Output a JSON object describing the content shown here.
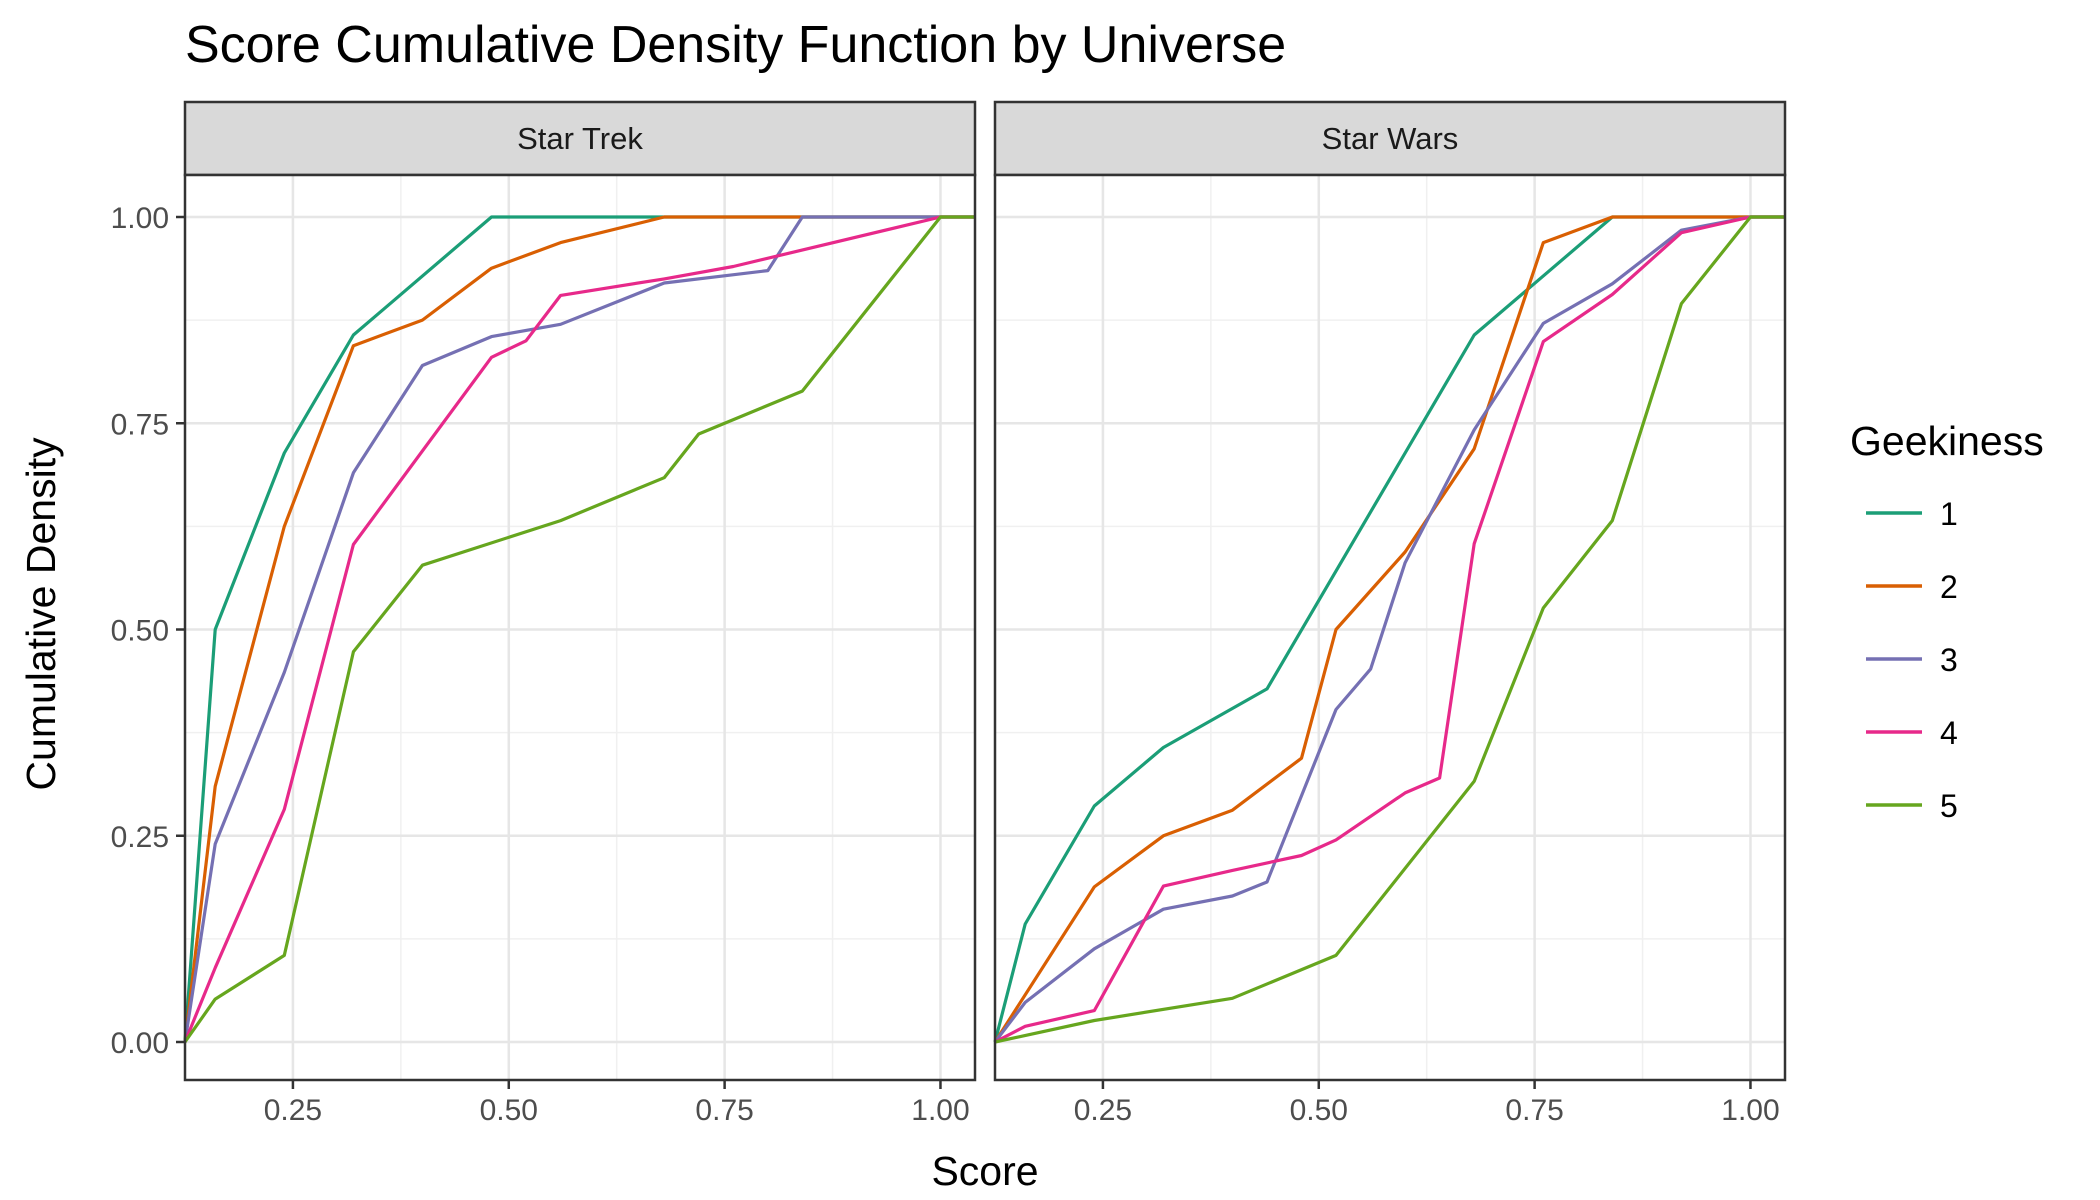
{
  "chart_data": {
    "type": "line",
    "title": "Score Cumulative Density Function by Universe",
    "xlabel": "Score",
    "ylabel": "Cumulative Density",
    "xlim": [
      0.125,
      1.04
    ],
    "ylim": [
      0,
      1.0
    ],
    "x_ticks": [
      "0.25",
      "0.50",
      "0.75",
      "1.00"
    ],
    "y_ticks": [
      "0.00",
      "0.25",
      "0.50",
      "0.75",
      "1.00"
    ],
    "grid": true,
    "legend": {
      "title": "Geekiness",
      "position": "right",
      "entries": [
        "1",
        "2",
        "3",
        "4",
        "5"
      ]
    },
    "colors": [
      "#1B9E77",
      "#D95F02",
      "#7570B3",
      "#E7298A",
      "#66A61E"
    ],
    "panels": [
      {
        "name": "Star Trek",
        "series": [
          {
            "name": "1",
            "points": [
              [
                0.125,
                0
              ],
              [
                0.16,
                0.5
              ],
              [
                0.24,
                0.714
              ],
              [
                0.32,
                0.857
              ],
              [
                0.48,
                1.0
              ],
              [
                1.04,
                1.0
              ]
            ]
          },
          {
            "name": "2",
            "points": [
              [
                0.125,
                0
              ],
              [
                0.16,
                0.31
              ],
              [
                0.24,
                0.625
              ],
              [
                0.32,
                0.844
              ],
              [
                0.4,
                0.875
              ],
              [
                0.48,
                0.938
              ],
              [
                0.56,
                0.969
              ],
              [
                0.68,
                1.0
              ],
              [
                1.04,
                1.0
              ]
            ]
          },
          {
            "name": "3",
            "points": [
              [
                0.125,
                0
              ],
              [
                0.16,
                0.24
              ],
              [
                0.24,
                0.448
              ],
              [
                0.32,
                0.69
              ],
              [
                0.4,
                0.82
              ],
              [
                0.48,
                0.855
              ],
              [
                0.56,
                0.87
              ],
              [
                0.68,
                0.92
              ],
              [
                0.8,
                0.935
              ],
              [
                0.84,
                1.0
              ],
              [
                1.04,
                1.0
              ]
            ]
          },
          {
            "name": "4",
            "points": [
              [
                0.125,
                0
              ],
              [
                0.16,
                0.09
              ],
              [
                0.24,
                0.282
              ],
              [
                0.32,
                0.603
              ],
              [
                0.48,
                0.83
              ],
              [
                0.52,
                0.85
              ],
              [
                0.56,
                0.905
              ],
              [
                0.68,
                0.925
              ],
              [
                0.76,
                0.94
              ],
              [
                1.0,
                1.0
              ],
              [
                1.04,
                1.0
              ]
            ]
          },
          {
            "name": "5",
            "points": [
              [
                0.125,
                0
              ],
              [
                0.16,
                0.052
              ],
              [
                0.24,
                0.105
              ],
              [
                0.32,
                0.473
              ],
              [
                0.4,
                0.578
              ],
              [
                0.56,
                0.632
              ],
              [
                0.68,
                0.684
              ],
              [
                0.72,
                0.737
              ],
              [
                0.84,
                0.789
              ],
              [
                1.0,
                1.0
              ],
              [
                1.04,
                1.0
              ]
            ]
          }
        ]
      },
      {
        "name": "Star Wars",
        "series": [
          {
            "name": "1",
            "points": [
              [
                0.125,
                0
              ],
              [
                0.16,
                0.143
              ],
              [
                0.24,
                0.286
              ],
              [
                0.32,
                0.357
              ],
              [
                0.44,
                0.428
              ],
              [
                0.68,
                0.857
              ],
              [
                0.84,
                1.0
              ],
              [
                1.04,
                1.0
              ]
            ]
          },
          {
            "name": "2",
            "points": [
              [
                0.125,
                0
              ],
              [
                0.24,
                0.188
              ],
              [
                0.32,
                0.25
              ],
              [
                0.4,
                0.281
              ],
              [
                0.48,
                0.344
              ],
              [
                0.52,
                0.5
              ],
              [
                0.6,
                0.594
              ],
              [
                0.68,
                0.719
              ],
              [
                0.76,
                0.969
              ],
              [
                0.84,
                1.0
              ],
              [
                1.04,
                1.0
              ]
            ]
          },
          {
            "name": "3",
            "points": [
              [
                0.125,
                0
              ],
              [
                0.16,
                0.048
              ],
              [
                0.24,
                0.113
              ],
              [
                0.32,
                0.161
              ],
              [
                0.4,
                0.177
              ],
              [
                0.44,
                0.194
              ],
              [
                0.52,
                0.403
              ],
              [
                0.56,
                0.452
              ],
              [
                0.6,
                0.581
              ],
              [
                0.68,
                0.742
              ],
              [
                0.76,
                0.871
              ],
              [
                0.84,
                0.919
              ],
              [
                0.92,
                0.984
              ],
              [
                1.0,
                1.0
              ],
              [
                1.04,
                1.0
              ]
            ]
          },
          {
            "name": "4",
            "points": [
              [
                0.125,
                0
              ],
              [
                0.16,
                0.019
              ],
              [
                0.24,
                0.038
              ],
              [
                0.32,
                0.189
              ],
              [
                0.4,
                0.208
              ],
              [
                0.48,
                0.226
              ],
              [
                0.52,
                0.245
              ],
              [
                0.6,
                0.302
              ],
              [
                0.64,
                0.32
              ],
              [
                0.68,
                0.604
              ],
              [
                0.76,
                0.849
              ],
              [
                0.84,
                0.906
              ],
              [
                0.92,
                0.981
              ],
              [
                1.0,
                1.0
              ],
              [
                1.04,
                1.0
              ]
            ]
          },
          {
            "name": "5",
            "points": [
              [
                0.125,
                0
              ],
              [
                0.24,
                0.026
              ],
              [
                0.4,
                0.053
              ],
              [
                0.52,
                0.105
              ],
              [
                0.68,
                0.316
              ],
              [
                0.76,
                0.526
              ],
              [
                0.84,
                0.632
              ],
              [
                0.92,
                0.895
              ],
              [
                1.0,
                1.0
              ],
              [
                1.04,
                1.0
              ]
            ]
          }
        ]
      }
    ]
  }
}
